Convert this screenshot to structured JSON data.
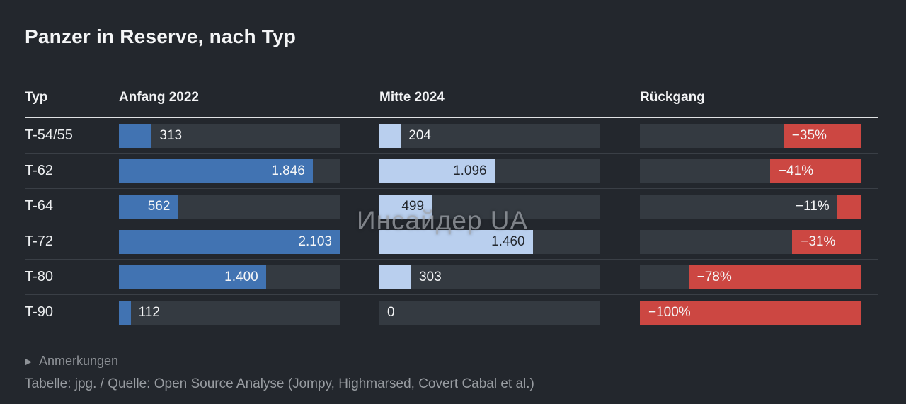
{
  "title": "Panzer in Reserve, nach Typ",
  "watermark": "Инсайдер UA",
  "columns": {
    "typ": "Typ",
    "col1": "Anfang 2022",
    "col2": "Mitte 2024",
    "col3": "Rückgang"
  },
  "footer": {
    "notes_label": "Anmerkungen",
    "triangle_icon": "▶",
    "source": "Tabelle: jpg. / Quelle: Open Source Analyse (Jompy, Highmarsed, Covert Cabal et al.)"
  },
  "colors": {
    "background": "#23272d",
    "track": "#343a41",
    "bar-2022": "#4173b2",
    "bar-2024": "#b9cfee",
    "bar-decline": "#cc4742",
    "header-rule": "#dfe1e3",
    "row-separator": "#3a3f46",
    "text": "#f2f3f5",
    "muted": "#989ca1"
  },
  "chart_data": {
    "type": "bar",
    "title": "Panzer in Reserve, nach Typ",
    "categories": [
      "T-54/55",
      "T-62",
      "T-64",
      "T-72",
      "T-80",
      "T-90"
    ],
    "series": [
      {
        "name": "Anfang 2022",
        "values": [
          313,
          1846,
          562,
          2103,
          1400,
          112
        ],
        "labels": [
          "313",
          "1.846",
          "562",
          "2.103",
          "1.400",
          "112"
        ]
      },
      {
        "name": "Mitte 2024",
        "values": [
          204,
          1096,
          499,
          1460,
          303,
          0
        ],
        "labels": [
          "204",
          "1.096",
          "499",
          "1.460",
          "303",
          "0"
        ]
      },
      {
        "name": "Rückgang",
        "values": [
          -35,
          -41,
          -11,
          -31,
          -78,
          -100
        ],
        "labels": [
          "−35%",
          "−41%",
          "−11%",
          "−31%",
          "−78%",
          "−100%"
        ]
      }
    ],
    "xlim": [
      0,
      2103
    ],
    "legend_position": "none",
    "grid": false,
    "layout": "three-column horizontal bars, decline bars right-anchored"
  }
}
